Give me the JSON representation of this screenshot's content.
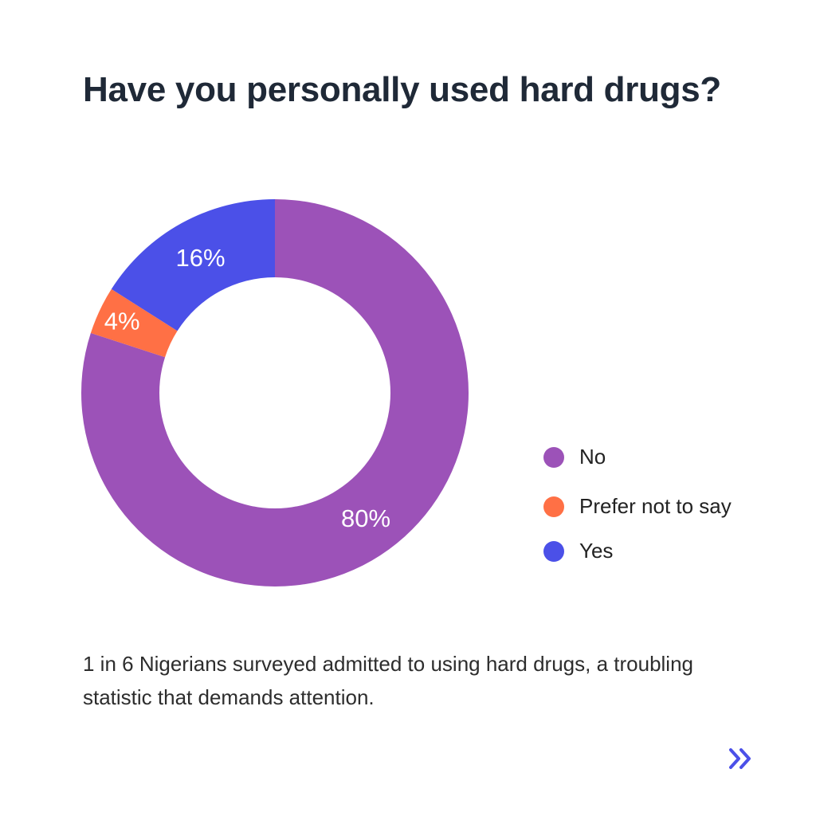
{
  "title": "Have you personally used hard drugs?",
  "chart_data": {
    "type": "pie",
    "donut": true,
    "title": "Have you personally used hard drugs?",
    "categories": [
      "No",
      "Prefer not to say",
      "Yes"
    ],
    "values": [
      80,
      4,
      16
    ],
    "labels": [
      "80%",
      "4%",
      "16%"
    ],
    "colors": [
      "#9c52b8",
      "#ff7045",
      "#4b50e8"
    ],
    "legend_position": "right"
  },
  "caption": "1 in 6 Nigerians surveyed admitted to using hard drugs, a troubling statistic that demands attention.",
  "nav": {
    "next_icon": "double-chevron-right",
    "color": "#4b50e8"
  }
}
